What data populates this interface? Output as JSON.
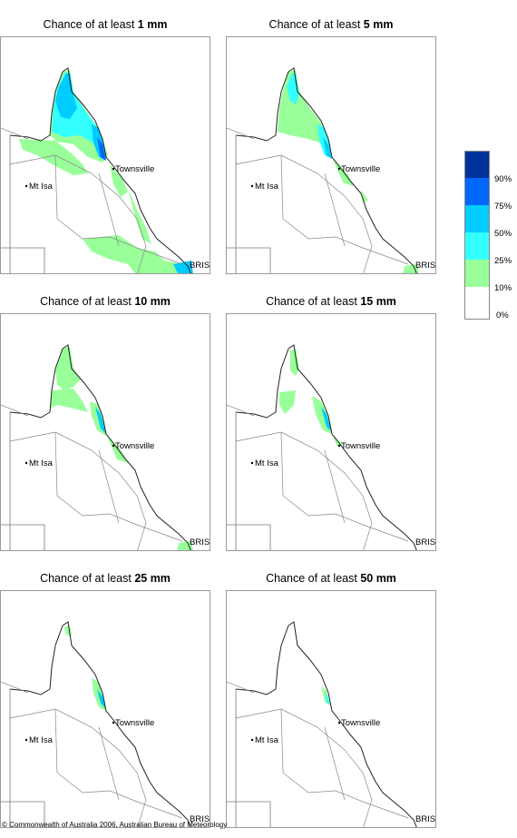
{
  "panels": [
    {
      "prefix": "Chance of at least ",
      "amount": "1 mm"
    },
    {
      "prefix": "Chance of at least ",
      "amount": "5 mm"
    },
    {
      "prefix": "Chance of at least ",
      "amount": "10 mm"
    },
    {
      "prefix": "Chance of at least ",
      "amount": "15 mm"
    },
    {
      "prefix": "Chance of at least ",
      "amount": "25 mm"
    },
    {
      "prefix": "Chance of at least ",
      "amount": "50 mm"
    }
  ],
  "places": {
    "townsville": "Townsville",
    "mt_isa": "Mt Isa",
    "brisbane": "BRIS"
  },
  "legend": {
    "bins": [
      {
        "label": "90%",
        "color": "#00339a"
      },
      {
        "label": "75%",
        "color": "#0066ff"
      },
      {
        "label": "50%",
        "color": "#00ccff"
      },
      {
        "label": "25%",
        "color": "#33ffff"
      },
      {
        "label": "10%",
        "color": "#99ff99"
      },
      {
        "label": "0%",
        "color": "#ffffff"
      }
    ]
  },
  "copyright": "© Commonwealth of Australia 2006, Australian Bureau of Meteorology"
}
